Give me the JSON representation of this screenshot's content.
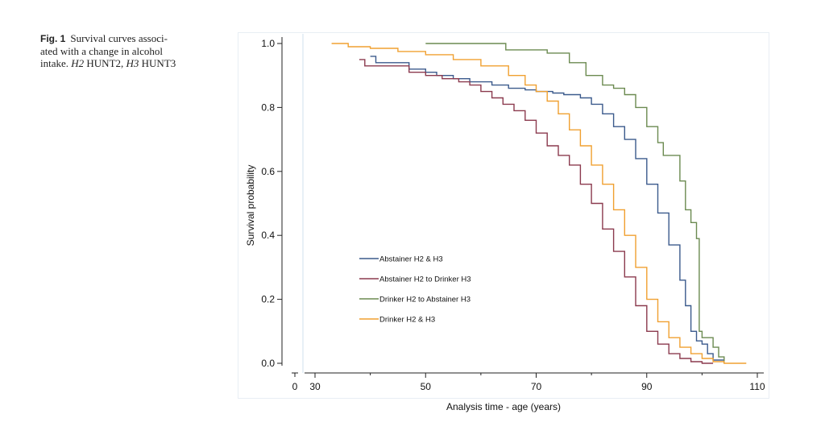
{
  "caption": {
    "fig_label": "Fig. 1",
    "text_line1": "Survival curves associ-",
    "text_line2": "ated with a change in alcohol",
    "text_line3_a": "intake.",
    "text_line3_h2": "H2",
    "text_line3_b": "HUNT2,",
    "text_line3_h3": "H3",
    "text_line3_c": "HUNT3"
  },
  "chart_data": {
    "type": "line",
    "title": "",
    "xlabel": "Analysis time - age (years)",
    "ylabel": "Survival probability",
    "xlim": [
      30,
      110
    ],
    "ylim": [
      0,
      1
    ],
    "x_origin_tick": "0",
    "x_ticks": [
      30,
      50,
      70,
      90,
      110
    ],
    "x_tick_labels": [
      "30",
      "50",
      "70",
      "90",
      "110"
    ],
    "y_ticks": [
      0,
      0.2,
      0.4,
      0.6,
      0.8,
      1.0
    ],
    "y_tick_labels": [
      "0.0",
      "0.2",
      "0.4",
      "0.6",
      "0.8",
      "1.0"
    ],
    "legend_position": "lower-left inside plot",
    "step": true,
    "series": [
      {
        "name": "Abstainer H2 & H3",
        "color": "#3b5a8c",
        "points": [
          [
            40,
            0.96
          ],
          [
            41,
            0.94
          ],
          [
            46,
            0.94
          ],
          [
            47,
            0.92
          ],
          [
            50,
            0.91
          ],
          [
            52,
            0.9
          ],
          [
            55,
            0.89
          ],
          [
            58,
            0.88
          ],
          [
            60,
            0.88
          ],
          [
            62,
            0.87
          ],
          [
            65,
            0.86
          ],
          [
            68,
            0.855
          ],
          [
            70,
            0.85
          ],
          [
            73,
            0.845
          ],
          [
            75,
            0.84
          ],
          [
            78,
            0.83
          ],
          [
            80,
            0.81
          ],
          [
            82,
            0.78
          ],
          [
            84,
            0.74
          ],
          [
            86,
            0.7
          ],
          [
            88,
            0.64
          ],
          [
            90,
            0.56
          ],
          [
            92,
            0.47
          ],
          [
            94,
            0.37
          ],
          [
            96,
            0.26
          ],
          [
            97,
            0.18
          ],
          [
            98,
            0.1
          ],
          [
            99,
            0.07
          ],
          [
            100,
            0.06
          ],
          [
            101,
            0.03
          ],
          [
            102,
            0.01
          ],
          [
            104,
            0.0
          ]
        ]
      },
      {
        "name": "Abstainer H2 to Drinker H3",
        "color": "#8b3a4e",
        "points": [
          [
            38,
            0.95
          ],
          [
            39,
            0.93
          ],
          [
            46,
            0.93
          ],
          [
            47,
            0.91
          ],
          [
            50,
            0.9
          ],
          [
            53,
            0.89
          ],
          [
            56,
            0.88
          ],
          [
            58,
            0.87
          ],
          [
            60,
            0.85
          ],
          [
            62,
            0.83
          ],
          [
            64,
            0.81
          ],
          [
            66,
            0.79
          ],
          [
            68,
            0.76
          ],
          [
            70,
            0.72
          ],
          [
            72,
            0.68
          ],
          [
            74,
            0.65
          ],
          [
            76,
            0.62
          ],
          [
            78,
            0.56
          ],
          [
            80,
            0.5
          ],
          [
            82,
            0.42
          ],
          [
            84,
            0.35
          ],
          [
            86,
            0.27
          ],
          [
            88,
            0.18
          ],
          [
            90,
            0.1
          ],
          [
            92,
            0.06
          ],
          [
            94,
            0.03
          ],
          [
            96,
            0.015
          ],
          [
            98,
            0.005
          ],
          [
            100,
            0.0
          ],
          [
            102,
            0.0
          ]
        ]
      },
      {
        "name": "Drinker H2 to Abstainer H3",
        "color": "#6b8a50",
        "points": [
          [
            50,
            1.0
          ],
          [
            64,
            1.0
          ],
          [
            64.5,
            0.98
          ],
          [
            70,
            0.98
          ],
          [
            72,
            0.97
          ],
          [
            76,
            0.94
          ],
          [
            79,
            0.9
          ],
          [
            82,
            0.87
          ],
          [
            84,
            0.86
          ],
          [
            86,
            0.84
          ],
          [
            88,
            0.8
          ],
          [
            90,
            0.74
          ],
          [
            92,
            0.69
          ],
          [
            93,
            0.65
          ],
          [
            95,
            0.65
          ],
          [
            96,
            0.57
          ],
          [
            97,
            0.48
          ],
          [
            98,
            0.44
          ],
          [
            99,
            0.39
          ],
          [
            99.5,
            0.1
          ],
          [
            100,
            0.08
          ],
          [
            102,
            0.05
          ],
          [
            103,
            0.02
          ],
          [
            104,
            0.0
          ]
        ]
      },
      {
        "name": "Drinker H2 & H3",
        "color": "#f0a030",
        "points": [
          [
            33,
            1.0
          ],
          [
            36,
            0.99
          ],
          [
            40,
            0.985
          ],
          [
            45,
            0.975
          ],
          [
            50,
            0.965
          ],
          [
            55,
            0.95
          ],
          [
            60,
            0.93
          ],
          [
            65,
            0.9
          ],
          [
            68,
            0.87
          ],
          [
            70,
            0.85
          ],
          [
            72,
            0.82
          ],
          [
            74,
            0.78
          ],
          [
            76,
            0.73
          ],
          [
            78,
            0.68
          ],
          [
            80,
            0.62
          ],
          [
            82,
            0.56
          ],
          [
            84,
            0.48
          ],
          [
            86,
            0.4
          ],
          [
            88,
            0.3
          ],
          [
            90,
            0.2
          ],
          [
            92,
            0.13
          ],
          [
            94,
            0.08
          ],
          [
            96,
            0.05
          ],
          [
            98,
            0.03
          ],
          [
            100,
            0.015
          ],
          [
            102,
            0.005
          ],
          [
            104,
            0.0
          ],
          [
            108,
            0.0
          ]
        ]
      }
    ]
  }
}
